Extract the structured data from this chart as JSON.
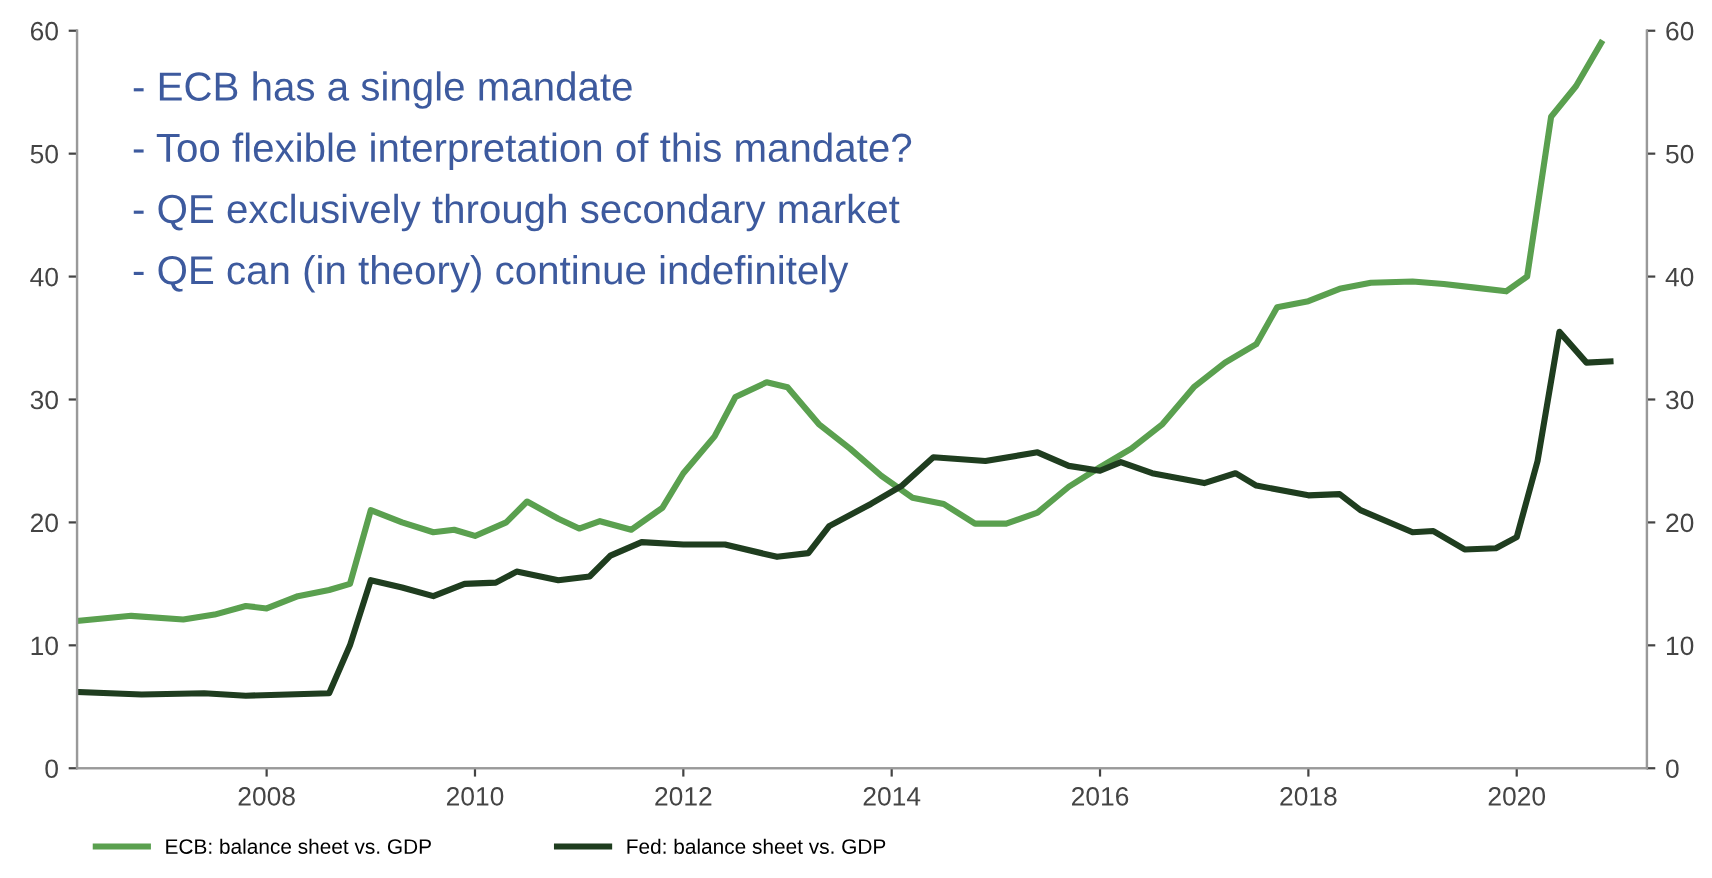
{
  "chart_data": {
    "type": "line",
    "xlim": [
      2006.18,
      2021.25
    ],
    "xticks": [
      2008,
      2010,
      2012,
      2014,
      2016,
      2018,
      2020
    ],
    "ylim": [
      0,
      60
    ],
    "yticks": [
      0,
      10,
      20,
      30,
      40,
      50,
      60
    ],
    "y2lim": [
      0,
      60
    ],
    "y2ticks": [
      0,
      10,
      20,
      30,
      40,
      50,
      60
    ],
    "grid": false,
    "legend": "bottom",
    "marker": "none",
    "line_style": "solid",
    "annotations": [
      "- ECB has a single mandate",
      "- Too flexible interpretation of this mandate?",
      "- QE exclusively through secondary market",
      "- QE can (in theory) continue indefinitely"
    ],
    "series": [
      {
        "name": "ECB: balance sheet vs. GDP",
        "color": "#5aa04f",
        "x": [
          2006.2,
          2006.7,
          2007.2,
          2007.5,
          2007.8,
          2008.0,
          2008.3,
          2008.6,
          2008.8,
          2009.0,
          2009.3,
          2009.6,
          2009.8,
          2010.0,
          2010.3,
          2010.5,
          2010.8,
          2011.0,
          2011.2,
          2011.5,
          2011.8,
          2012.0,
          2012.3,
          2012.5,
          2012.8,
          2013.0,
          2013.3,
          2013.6,
          2013.9,
          2014.2,
          2014.5,
          2014.8,
          2015.1,
          2015.4,
          2015.7,
          2016.0,
          2016.3,
          2016.6,
          2016.9,
          2017.2,
          2017.5,
          2017.7,
          2018.0,
          2018.3,
          2018.6,
          2019.0,
          2019.3,
          2019.6,
          2019.9,
          2020.1,
          2020.33,
          2020.57,
          2020.81
        ],
        "values": [
          12,
          12.4,
          12.1,
          12.5,
          13.2,
          13,
          14,
          14.5,
          15,
          21,
          20,
          19.2,
          19.4,
          18.9,
          20,
          21.7,
          20.3,
          19.5,
          20.1,
          19.4,
          21.2,
          24,
          27,
          30.2,
          31.4,
          31,
          28,
          26,
          23.8,
          22,
          21.5,
          19.9,
          19.9,
          20.8,
          22.9,
          24.5,
          26,
          28,
          31,
          33,
          34.5,
          37.5,
          38,
          39,
          39.5,
          39.6,
          39.4,
          39.1,
          38.8,
          40,
          53,
          55.5,
          59
        ]
      },
      {
        "name": "Fed: balance sheet vs. GDP",
        "color": "#1f3d1f",
        "x": [
          2006.2,
          2006.8,
          2007.4,
          2007.8,
          2008.2,
          2008.6,
          2008.8,
          2009.0,
          2009.3,
          2009.6,
          2009.9,
          2010.2,
          2010.4,
          2010.8,
          2011.1,
          2011.3,
          2011.6,
          2012.0,
          2012.4,
          2012.9,
          2013.2,
          2013.4,
          2013.8,
          2014.1,
          2014.4,
          2014.9,
          2015.4,
          2015.7,
          2016.0,
          2016.2,
          2016.5,
          2017.0,
          2017.3,
          2017.5,
          2018.0,
          2018.3,
          2018.5,
          2019.0,
          2019.2,
          2019.5,
          2019.8,
          2020.0,
          2020.2,
          2020.41,
          2020.67,
          2020.9
        ],
        "values": [
          6.2,
          6,
          6.1,
          5.9,
          6,
          6.1,
          10,
          15.3,
          14.7,
          14,
          15,
          15.1,
          16,
          15.3,
          15.6,
          17.3,
          18.4,
          18.2,
          18.2,
          17.2,
          17.5,
          19.7,
          21.5,
          23,
          25.3,
          25,
          25.7,
          24.6,
          24.2,
          24.9,
          24,
          23.2,
          24,
          23,
          22.2,
          22.3,
          21,
          19.2,
          19.3,
          17.8,
          17.9,
          18.8,
          25,
          35.5,
          33,
          33.1
        ]
      }
    ]
  }
}
